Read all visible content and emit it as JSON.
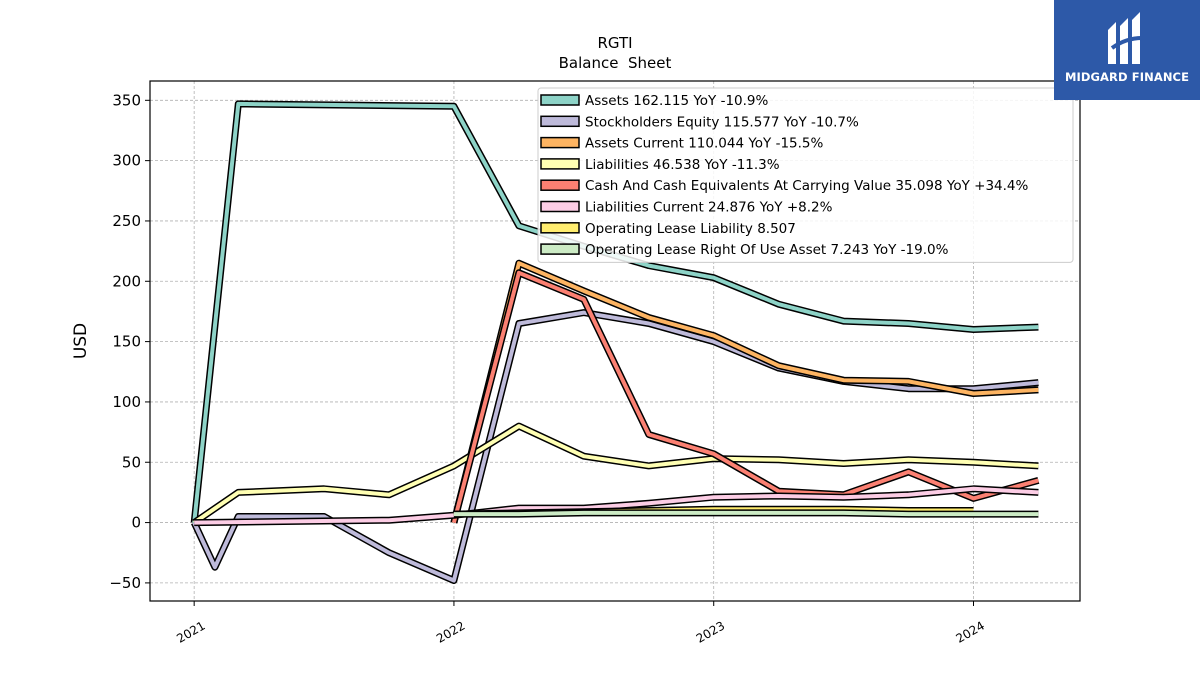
{
  "chart_data": {
    "type": "line",
    "title": "RGTI",
    "subtitle": "Balance  Sheet",
    "ylabel": "USD",
    "xlabel": "",
    "ylim": [
      -65,
      366
    ],
    "xlim": [
      2020.83,
      2024.41
    ],
    "yticks": [
      -50,
      0,
      50,
      100,
      150,
      200,
      250,
      300,
      350
    ],
    "xticks": [
      {
        "value": 2021,
        "label": "2021"
      },
      {
        "value": 2022,
        "label": "2022"
      },
      {
        "value": 2023,
        "label": "2023"
      },
      {
        "value": 2024,
        "label": "2024"
      }
    ],
    "grid": true,
    "legend_position": "top-right",
    "series": [
      {
        "name": "Assets  162.115 YoY -10.9%",
        "color": "#8dd3c7",
        "x": [
          2021.0,
          2021.17,
          2022.0,
          2022.25,
          2022.5,
          2022.75,
          2023.0,
          2023.25,
          2023.5,
          2023.75,
          2024.0,
          2024.25
        ],
        "y": [
          0,
          347,
          345,
          246,
          229,
          213,
          203,
          181,
          167,
          165,
          160,
          162
        ]
      },
      {
        "name": "Stockholders Equity  115.577 YoY -10.7%",
        "color": "#bebada",
        "x": [
          2021.0,
          2021.08,
          2021.17,
          2021.5,
          2021.75,
          2022.0,
          2022.25,
          2022.5,
          2022.75,
          2023.0,
          2023.25,
          2023.5,
          2023.75,
          2024.0,
          2024.25
        ],
        "y": [
          0,
          -37,
          5,
          5,
          -25,
          -48,
          165,
          174,
          165,
          150,
          128,
          117,
          111,
          111,
          116
        ]
      },
      {
        "name": "Assets Current  110.044 YoY -15.5%",
        "color": "#fdb462",
        "x": [
          2022.0,
          2022.25,
          2022.5,
          2022.75,
          2023.0,
          2023.25,
          2023.5,
          2023.75,
          2024.0,
          2024.25
        ],
        "y": [
          0,
          215,
          192,
          170,
          155,
          130,
          118,
          117,
          107,
          110
        ]
      },
      {
        "name": "Liabilities  46.538 YoY -11.3%",
        "color": "#ffffb3",
        "x": [
          2021.0,
          2021.17,
          2021.5,
          2021.75,
          2022.0,
          2022.25,
          2022.5,
          2022.75,
          2023.0,
          2023.25,
          2023.5,
          2023.75,
          2024.0,
          2024.25
        ],
        "y": [
          0,
          25,
          28,
          23,
          47,
          80,
          55,
          47,
          53,
          52,
          49,
          52,
          50,
          47
        ]
      },
      {
        "name": "Cash And Cash Equivalents At Carrying Value  35.098 YoY +34.4%",
        "color": "#fb8072",
        "x": [
          2022.0,
          2022.25,
          2022.5,
          2022.75,
          2023.0,
          2023.25,
          2023.5,
          2023.75,
          2024.0,
          2024.25
        ],
        "y": [
          0,
          207,
          185,
          73,
          57,
          26,
          23,
          42,
          20,
          35
        ]
      },
      {
        "name": "Liabilities Current  24.876 YoY +8.2%",
        "color": "#fccde5",
        "x": [
          2021.0,
          2021.75,
          2022.0,
          2022.25,
          2022.5,
          2022.75,
          2023.0,
          2023.25,
          2023.5,
          2023.75,
          2024.0,
          2024.25
        ],
        "y": [
          0,
          2,
          6,
          12,
          12,
          16,
          21,
          22,
          21,
          23,
          28,
          25
        ]
      },
      {
        "name": "Operating Lease Liability  8.507",
        "color": "#ffed6f",
        "x": [
          2022.0,
          2022.25,
          2022.5,
          2022.75,
          2023.0,
          2023.25,
          2023.5,
          2023.75,
          2024.0
        ],
        "y": [
          7,
          8,
          9,
          10,
          11,
          11,
          11,
          10,
          10
        ]
      },
      {
        "name": "Operating Lease Right Of Use Asset  7.243 YoY -19.0%",
        "color": "#ccebc5",
        "x": [
          2022.0,
          2022.25,
          2022.5,
          2022.75,
          2023.0,
          2023.25,
          2023.5,
          2023.75,
          2024.0,
          2024.25
        ],
        "y": [
          7,
          7,
          8,
          8,
          8,
          8,
          8,
          7,
          7,
          7
        ]
      }
    ]
  },
  "logo": {
    "text": "MIDGARD FINANCE",
    "bg_color": "#2d59a8"
  }
}
